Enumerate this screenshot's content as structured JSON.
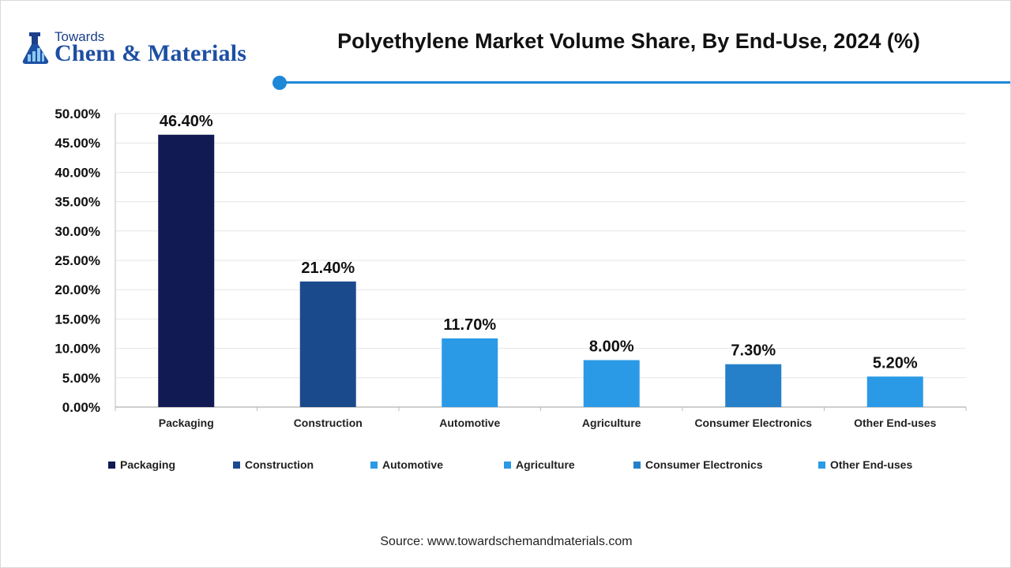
{
  "brand": {
    "small": "Towards",
    "big": "Chem & Materials",
    "color": "#1d4fa3",
    "accent": "#1e88d6"
  },
  "chart_data": {
    "type": "bar",
    "title": "Polyethylene Market Volume Share, By End-Use, 2024 (%)",
    "categories": [
      "Packaging",
      "Construction",
      "Automotive",
      "Agriculture",
      "Consumer Electronics",
      "Other End-uses"
    ],
    "values": [
      46.4,
      21.4,
      11.7,
      8.0,
      7.3,
      5.2
    ],
    "value_labels": [
      "46.40%",
      "21.40%",
      "11.70%",
      "8.00%",
      "7.30%",
      "5.20%"
    ],
    "colors": [
      "#111a52",
      "#1b4a8c",
      "#2a9ae6",
      "#2a9ae6",
      "#2580c9",
      "#2a9ae6"
    ],
    "ylim": [
      0,
      50
    ],
    "yticks": [
      0,
      5,
      10,
      15,
      20,
      25,
      30,
      35,
      40,
      45,
      50
    ],
    "ytick_labels": [
      "0.00%",
      "5.00%",
      "10.00%",
      "15.00%",
      "20.00%",
      "25.00%",
      "30.00%",
      "35.00%",
      "40.00%",
      "45.00%",
      "50.00%"
    ],
    "grid": true,
    "legend_position": "bottom",
    "legend": [
      "Packaging",
      "Construction",
      "Automotive",
      "Agriculture",
      "Consumer Electronics",
      "Other End-uses"
    ]
  },
  "source": "Source: www.towardschemandmaterials.com"
}
